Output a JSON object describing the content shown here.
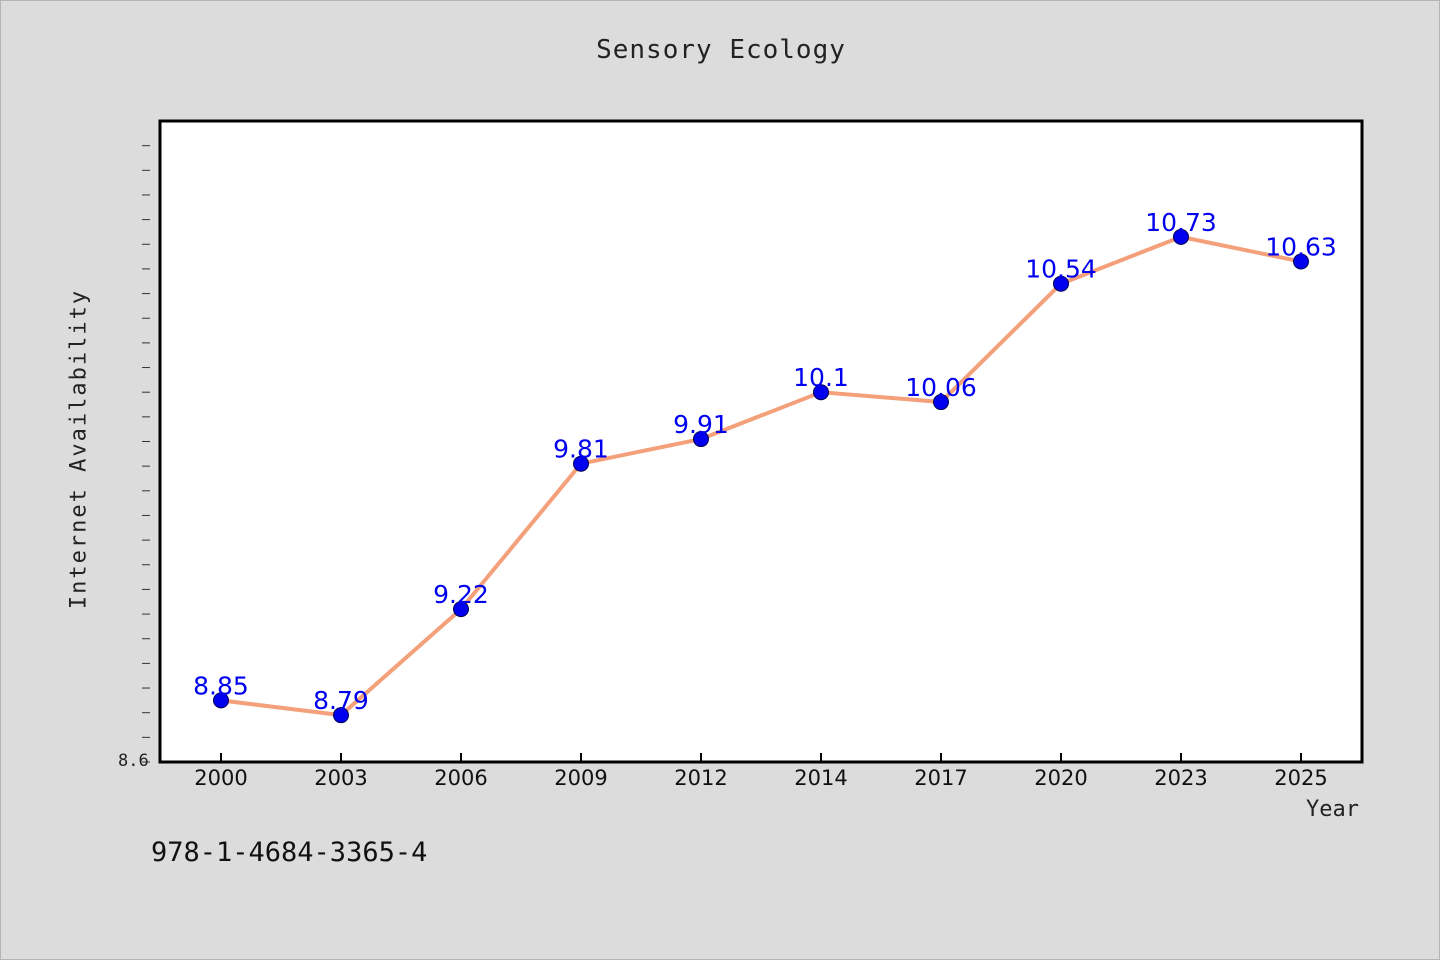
{
  "chart_data": {
    "type": "line",
    "title": "Sensory Ecology",
    "xlabel": "Year",
    "ylabel": "Internet Availability",
    "categories": [
      "2000",
      "2003",
      "2006",
      "2009",
      "2012",
      "2014",
      "2017",
      "2020",
      "2023",
      "2025"
    ],
    "series": [
      {
        "values": [
          8.85,
          8.79,
          9.22,
          9.81,
          9.91,
          10.1,
          10.06,
          10.54,
          10.73,
          10.63
        ],
        "labels": [
          "8.85",
          "8.79",
          "9.22",
          "9.81",
          "9.91",
          "10.1",
          "10.06",
          "10.54",
          "10.73",
          "10.63"
        ],
        "line_color": "#f4a07a",
        "marker_color": "#0000ee",
        "label_color": "#0000ee"
      }
    ],
    "ylim": [
      8.6,
      11.2
    ],
    "y_tick_labels": [
      "8.6"
    ],
    "grid": false,
    "legend": "none"
  },
  "footer": {
    "isbn": "978-1-4684-3365-4"
  }
}
